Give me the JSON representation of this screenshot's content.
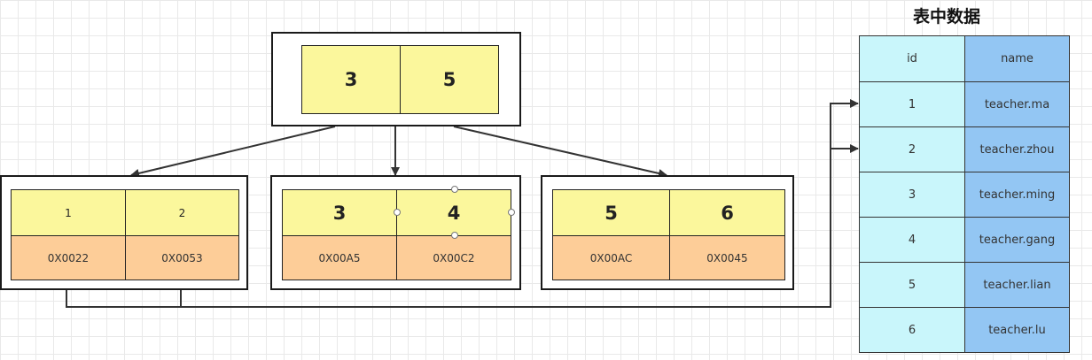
{
  "root": {
    "keys": [
      "3",
      "5"
    ]
  },
  "leaves": [
    {
      "keys": [
        "1",
        "2"
      ],
      "addrs": [
        "0X0022",
        "0X0053"
      ]
    },
    {
      "keys": [
        "3",
        "4"
      ],
      "addrs": [
        "0X00A5",
        "0X00C2"
      ]
    },
    {
      "keys": [
        "5",
        "6"
      ],
      "addrs": [
        "0X00AC",
        "0X0045"
      ]
    }
  ],
  "table": {
    "title": "表中数据",
    "headers": [
      "id",
      "name"
    ],
    "rows": [
      [
        "1",
        "teacher.ma"
      ],
      [
        "2",
        "teacher.zhou"
      ],
      [
        "3",
        "teacher.ming"
      ],
      [
        "4",
        "teacher.gang"
      ],
      [
        "5",
        "teacher.lian"
      ],
      [
        "6",
        "teacher.lu"
      ]
    ]
  },
  "colors": {
    "key_fill": "#fbf79c",
    "addr_fill": "#fdcd98",
    "id_fill": "#c9f6fb",
    "name_fill": "#93c6f3"
  }
}
